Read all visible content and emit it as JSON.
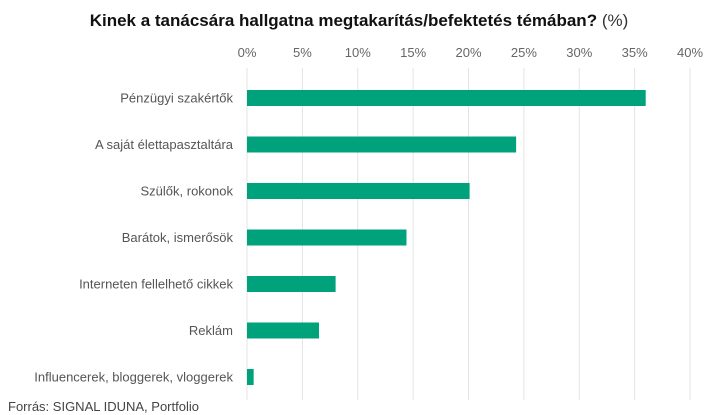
{
  "chart_data": {
    "type": "bar",
    "orientation": "horizontal",
    "title": "Kinek a tanácsára hallgatna megtakarítás/befektetés témában?",
    "title_unit": "(%)",
    "categories": [
      "Pénzügyi szakértők",
      "A saját élettapasztaltára",
      "Szülők, rokonok",
      "Barátok, ismerősök",
      "Interneten fellelhető cikkek",
      "Reklám",
      "Influencerek, bloggerek, vloggerek"
    ],
    "values": [
      36,
      24.3,
      20.1,
      14.4,
      8.0,
      6.5,
      0.6
    ],
    "xlim": [
      0,
      40
    ],
    "x_ticks": [
      0,
      5,
      10,
      15,
      20,
      25,
      30,
      35,
      40
    ],
    "x_tick_labels": [
      "0%",
      "5%",
      "10%",
      "15%",
      "20%",
      "25%",
      "30%",
      "35%",
      "40%"
    ],
    "axis_position": "top",
    "grid": true,
    "bar_color": "#00a27c",
    "grid_color": "#e3e3e3"
  },
  "source": "Forrás: SIGNAL IDUNA, Portfolio"
}
